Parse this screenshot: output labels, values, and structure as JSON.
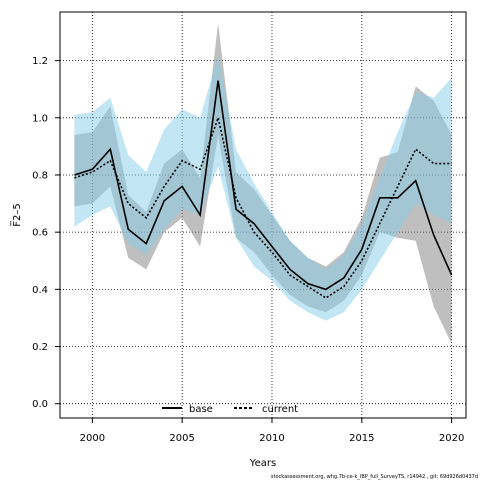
{
  "chart_data": {
    "type": "line",
    "title": "",
    "xlabel": "Years",
    "ylabel": "F̅2–5",
    "xlim": [
      1998.2,
      2020.8
    ],
    "ylim": [
      -0.05,
      1.37
    ],
    "xticks": [
      2000,
      2005,
      2010,
      2015,
      2020
    ],
    "yticks": [
      0.0,
      0.2,
      0.4,
      0.6,
      0.8,
      1.0,
      1.2
    ],
    "ytick_labels": [
      "0.0",
      "0.2",
      "0.4",
      "0.6",
      "0.8",
      "1.0",
      "1.2"
    ],
    "grid": true,
    "legend_position": "bottom-left",
    "x": [
      1999,
      2000,
      2001,
      2002,
      2003,
      2004,
      2005,
      2006,
      2007,
      2008,
      2009,
      2010,
      2011,
      2012,
      2013,
      2014,
      2015,
      2016,
      2017,
      2018,
      2019,
      2020
    ],
    "series": [
      {
        "name": "base",
        "color": "#000000",
        "dash": "solid",
        "band_color": "#808080",
        "values": [
          0.8,
          0.82,
          0.89,
          0.61,
          0.56,
          0.71,
          0.76,
          0.66,
          1.13,
          0.68,
          0.63,
          0.55,
          0.47,
          0.42,
          0.4,
          0.44,
          0.54,
          0.72,
          0.72,
          0.78,
          0.59,
          0.45
        ],
        "lower": [
          0.69,
          0.7,
          0.76,
          0.51,
          0.47,
          0.6,
          0.65,
          0.55,
          0.94,
          0.58,
          0.53,
          0.45,
          0.38,
          0.34,
          0.32,
          0.36,
          0.45,
          0.6,
          0.58,
          0.57,
          0.34,
          0.21
        ],
        "upper": [
          0.94,
          0.95,
          1.04,
          0.73,
          0.67,
          0.84,
          0.89,
          0.79,
          1.33,
          0.81,
          0.75,
          0.66,
          0.57,
          0.51,
          0.48,
          0.53,
          0.65,
          0.86,
          0.88,
          1.11,
          1.06,
          0.94
        ]
      },
      {
        "name": "current",
        "color": "#000000",
        "dash": "dotted",
        "band_color": "#87CEEB",
        "values": [
          0.79,
          0.81,
          0.85,
          0.7,
          0.65,
          0.76,
          0.85,
          0.82,
          1.0,
          0.72,
          0.6,
          0.53,
          0.45,
          0.41,
          0.37,
          0.41,
          0.5,
          0.63,
          0.76,
          0.89,
          0.84,
          0.84
        ],
        "lower": [
          0.62,
          0.66,
          0.69,
          0.56,
          0.52,
          0.61,
          0.68,
          0.66,
          0.83,
          0.58,
          0.48,
          0.43,
          0.36,
          0.32,
          0.29,
          0.32,
          0.4,
          0.5,
          0.6,
          0.7,
          0.66,
          0.63
        ],
        "upper": [
          1.01,
          1.02,
          1.07,
          0.87,
          0.81,
          0.96,
          1.03,
          1.0,
          1.22,
          0.89,
          0.77,
          0.67,
          0.57,
          0.51,
          0.47,
          0.52,
          0.63,
          0.79,
          0.95,
          1.09,
          1.07,
          1.14
        ]
      }
    ],
    "footnote": "stockassessment.org, whg.7b-ce-k_IBP_full_SurveyTS, r14942 , git: 69d926d0437d"
  }
}
